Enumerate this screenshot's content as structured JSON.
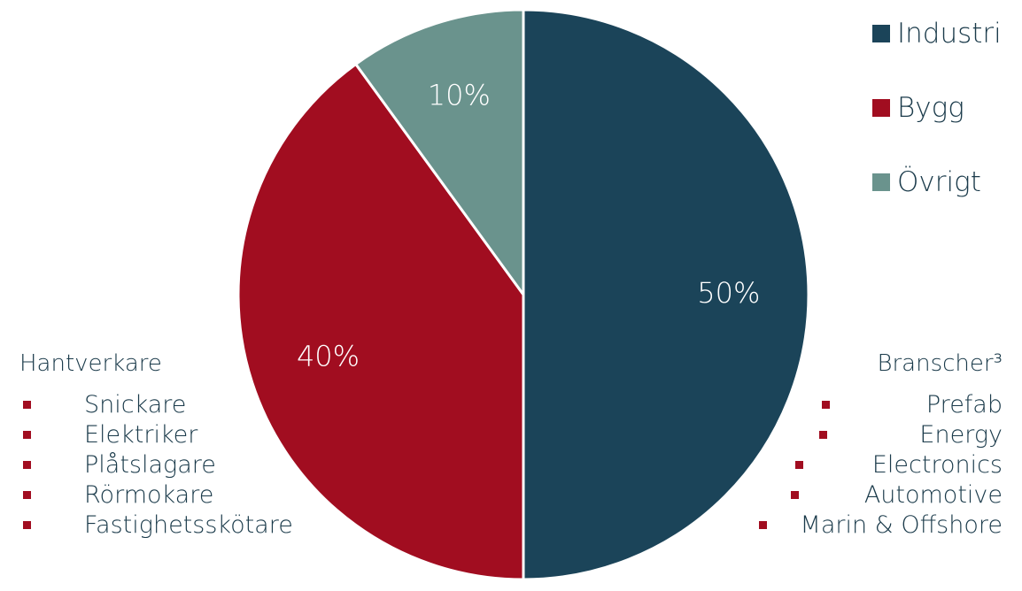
{
  "chart_data": {
    "type": "pie",
    "slices": [
      {
        "label": "Industri",
        "value": 50,
        "display": "50%",
        "color": "#1b4459"
      },
      {
        "label": "Bygg",
        "value": 40,
        "display": "40%",
        "color": "#a10d20"
      },
      {
        "label": "Övrigt",
        "value": 10,
        "display": "10%",
        "color": "#6a938d"
      }
    ],
    "start_angle_deg": 0,
    "direction": "clockwise",
    "legend_position": "top-right"
  },
  "colors": {
    "text": "#1a3a4a",
    "bullet": "#a10d20",
    "slice_border": "#ffffff"
  },
  "left_list": {
    "title": "Hantverkare",
    "items": [
      "Snickare",
      "Elektriker",
      "Plåtslagare",
      "Rörmokare",
      "Fastighetsskötare"
    ]
  },
  "right_list": {
    "title": "Branscher³",
    "items": [
      "Prefab",
      "Energy",
      "Electronics",
      "Automotive",
      "Marin & Offshore"
    ]
  }
}
